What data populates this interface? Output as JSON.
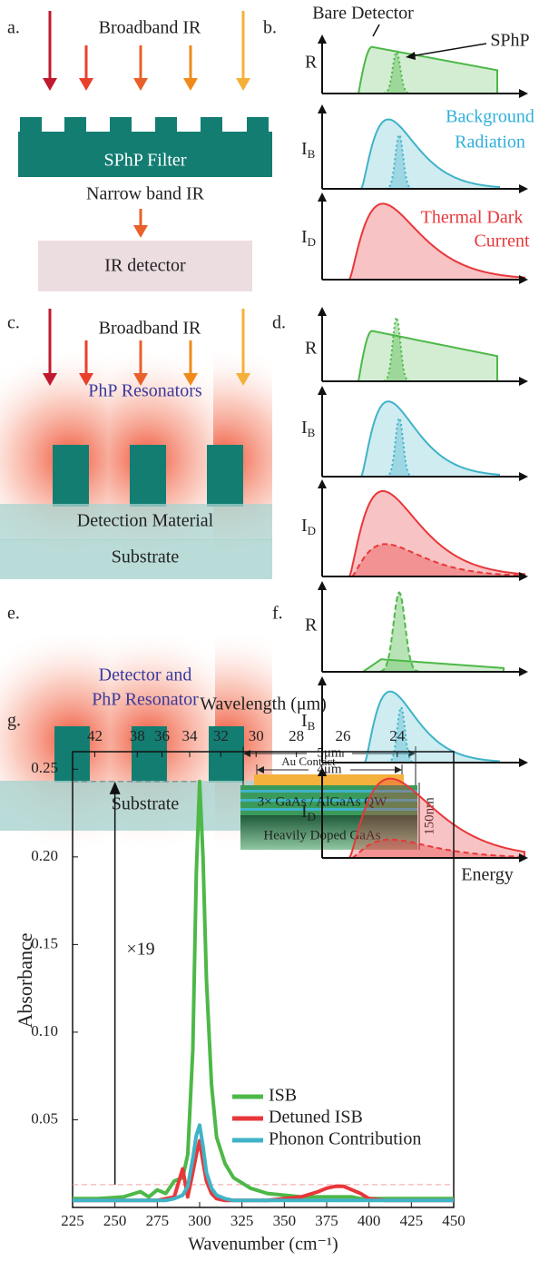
{
  "panels": {
    "a": {
      "label": "a.",
      "incident": "Broadband IR",
      "filter": "SPhP Filter",
      "transmitted": "Narrow band IR",
      "detector": "IR detector"
    },
    "b": {
      "label": "b.",
      "bare": "Bare Detector",
      "sphp": "SPhP",
      "r": "R",
      "ib": {
        "main": "I",
        "sub": "B"
      },
      "ib_note": [
        "Background",
        "Radiation"
      ],
      "id": {
        "main": "I",
        "sub": "D"
      },
      "id_note": [
        "Thermal Dark",
        "Current"
      ]
    },
    "c": {
      "label": "c.",
      "incident": "Broadband IR",
      "resonators": "PhP Resonators",
      "detection": "Detection Material",
      "substrate": "Substrate"
    },
    "d": {
      "label": "d.",
      "r": "R",
      "ib": {
        "main": "I",
        "sub": "B"
      },
      "id": {
        "main": "I",
        "sub": "D"
      }
    },
    "e": {
      "label": "e.",
      "resonator": [
        "Detector and",
        "PhP Resonator"
      ],
      "substrate": "Substrate"
    },
    "f": {
      "label": "f.",
      "r": "R",
      "ib": {
        "main": "I",
        "sub": "B"
      },
      "id": {
        "main": "I",
        "sub": "D"
      },
      "x_label": "Energy"
    },
    "g": {
      "label": "g.",
      "inset": {
        "outer": "5μm",
        "inner": "4μm",
        "contact": "Au Contact",
        "qw": "3× GaAs / AlGaAs QW",
        "substrate": "Heavily Doped GaAs",
        "thickness": "150nm"
      }
    }
  },
  "chart_data": {
    "type": "line",
    "x_label": "Wavenumber (cm⁻¹)",
    "x2_label": "Wavelength (μm)",
    "y_label": "Absorbance",
    "x": [
      225,
      240,
      255,
      265,
      270,
      275,
      280,
      285,
      290,
      293,
      296,
      298,
      300,
      302,
      304,
      307,
      310,
      315,
      320,
      330,
      340,
      350,
      360,
      370,
      375,
      380,
      385,
      390,
      395,
      400,
      410,
      420,
      435,
      450
    ],
    "series": [
      {
        "name": "ISB",
        "color": "#4db848",
        "values": [
          0.005,
          0.005,
          0.006,
          0.009,
          0.006,
          0.01,
          0.008,
          0.015,
          0.017,
          0.03,
          0.09,
          0.19,
          0.243,
          0.2,
          0.13,
          0.07,
          0.04,
          0.025,
          0.017,
          0.011,
          0.008,
          0.007,
          0.006,
          0.006,
          0.006,
          0.006,
          0.006,
          0.006,
          0.005,
          0.005,
          0.005,
          0.005,
          0.005,
          0.005
        ]
      },
      {
        "name": "Detuned ISB",
        "color": "#e8373a",
        "values": [
          0.004,
          0.004,
          0.004,
          0.004,
          0.004,
          0.004,
          0.005,
          0.006,
          0.022,
          0.006,
          0.02,
          0.03,
          0.038,
          0.026,
          0.015,
          0.008,
          0.005,
          0.004,
          0.004,
          0.004,
          0.004,
          0.005,
          0.006,
          0.009,
          0.011,
          0.012,
          0.012,
          0.01,
          0.008,
          0.005,
          0.004,
          0.004,
          0.004,
          0.004
        ]
      },
      {
        "name": "Phonon Contribution",
        "color": "#3fb3c8",
        "values": [
          0.004,
          0.004,
          0.004,
          0.004,
          0.004,
          0.004,
          0.004,
          0.005,
          0.007,
          0.012,
          0.028,
          0.041,
          0.047,
          0.035,
          0.02,
          0.011,
          0.007,
          0.005,
          0.004,
          0.004,
          0.004,
          0.004,
          0.004,
          0.004,
          0.004,
          0.004,
          0.004,
          0.004,
          0.004,
          0.004,
          0.004,
          0.004,
          0.004,
          0.004
        ]
      }
    ],
    "xlim": [
      225,
      450
    ],
    "xticks": [
      225,
      250,
      275,
      300,
      325,
      350,
      375,
      400,
      425,
      450
    ],
    "x2ticks": [
      42,
      38,
      36,
      34,
      32,
      30,
      28,
      26,
      24
    ],
    "ylim": [
      0,
      0.26
    ],
    "yticks": [
      0.05,
      {
        "value": 0.1,
        "label": "0.10"
      },
      0.15,
      {
        "value": 0.2,
        "label": "0.20"
      },
      0.25
    ],
    "peak_ref": 0.243,
    "baseline_ref": 0.013,
    "ratio_label": "×19"
  }
}
